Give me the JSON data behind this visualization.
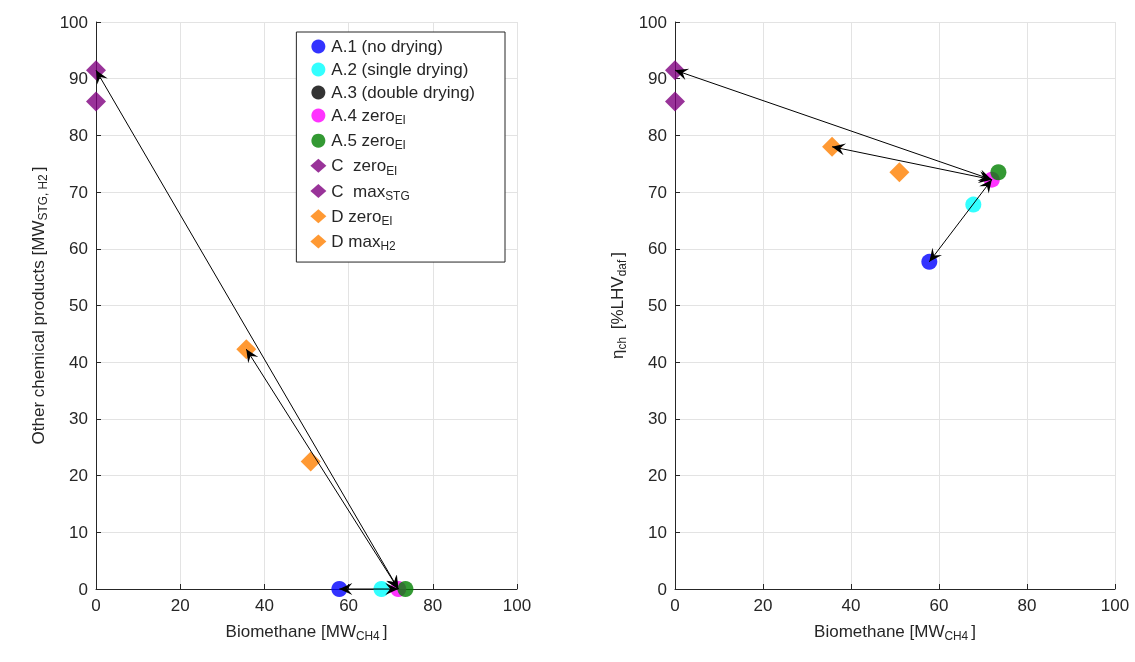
{
  "chart_data": [
    {
      "type": "scatter",
      "xlabel": "Biomethane [MW$_{CH4}$]",
      "ylabel": "Other chemical products [MW$_{STG, H2}$]",
      "xlim": [
        0,
        100
      ],
      "ylim": [
        0,
        100
      ],
      "xticks": [
        0,
        20,
        40,
        60,
        80,
        100
      ],
      "yticks": [
        0,
        10,
        20,
        30,
        40,
        50,
        60,
        70,
        80,
        90,
        100
      ],
      "grid": true,
      "legend": "top right",
      "series": [
        {
          "name": "A.1 (no drying)",
          "color": "#0000ff",
          "marker": "circle",
          "x": [
            57.8
          ],
          "values": [
            0
          ]
        },
        {
          "name": "A.2 (single drying)",
          "color": "#00ffff",
          "marker": "circle",
          "x": [
            67.8
          ],
          "values": [
            0
          ]
        },
        {
          "name": "A.3 (double drying)",
          "color": "#000000",
          "marker": "circle",
          "x": [
            null
          ],
          "values": [
            null
          ]
        },
        {
          "name": "A.4 zero$_{EI}$",
          "color": "#ff00ff",
          "marker": "circle",
          "x": [
            71.8
          ],
          "values": [
            0
          ]
        },
        {
          "name": "A.5 zero$_{EI}$",
          "color": "#008000",
          "marker": "circle",
          "x": [
            73.5
          ],
          "values": [
            0
          ]
        },
        {
          "name": "C  zero$_{EI}$",
          "color": "#800080",
          "marker": "diamond",
          "x": [
            0
          ],
          "values": [
            86
          ]
        },
        {
          "name": "C  max$_{STG}$",
          "color": "#800080",
          "marker": "diamond",
          "x": [
            0
          ],
          "values": [
            91.5
          ]
        },
        {
          "name": "D zero$_{EI}$",
          "color": "#ff7f00",
          "marker": "diamond",
          "x": [
            51
          ],
          "values": [
            22.5
          ]
        },
        {
          "name": "D max$_{H2}$",
          "color": "#ff7f00",
          "marker": "diamond",
          "x": [
            35.7
          ],
          "values": [
            42.3
          ]
        }
      ]
    },
    {
      "type": "scatter",
      "xlabel": "Biomethane [MW$_{CH4}$]",
      "ylabel": "η$_{ch}$ [%LHV$_{daf}$]",
      "xlim": [
        0,
        100
      ],
      "ylim": [
        0,
        100
      ],
      "xticks": [
        0,
        20,
        40,
        60,
        80,
        100
      ],
      "yticks": [
        0,
        10,
        20,
        30,
        40,
        50,
        60,
        70,
        80,
        90,
        100
      ],
      "grid": true,
      "series": [
        {
          "color": "#0000ff",
          "marker": "circle",
          "x": [
            57.8
          ],
          "values": [
            57.7
          ]
        },
        {
          "color": "#00ffff",
          "marker": "circle",
          "x": [
            67.8
          ],
          "values": [
            67.8
          ]
        },
        {
          "color": "#000000",
          "marker": "circle",
          "x": [
            null
          ],
          "values": [
            null
          ]
        },
        {
          "color": "#ff00ff",
          "marker": "circle",
          "x": [
            72
          ],
          "values": [
            72.2
          ]
        },
        {
          "color": "#008000",
          "marker": "circle",
          "x": [
            73.5
          ],
          "values": [
            73.5
          ]
        },
        {
          "color": "#800080",
          "marker": "diamond",
          "x": [
            0
          ],
          "values": [
            86
          ]
        },
        {
          "color": "#800080",
          "marker": "diamond",
          "x": [
            0
          ],
          "values": [
            91.5
          ]
        },
        {
          "color": "#ff7f00",
          "marker": "diamond",
          "x": [
            51
          ],
          "values": [
            73.5
          ]
        },
        {
          "color": "#ff7f00",
          "marker": "diamond",
          "x": [
            35.7
          ],
          "values": [
            78
          ]
        }
      ]
    }
  ]
}
